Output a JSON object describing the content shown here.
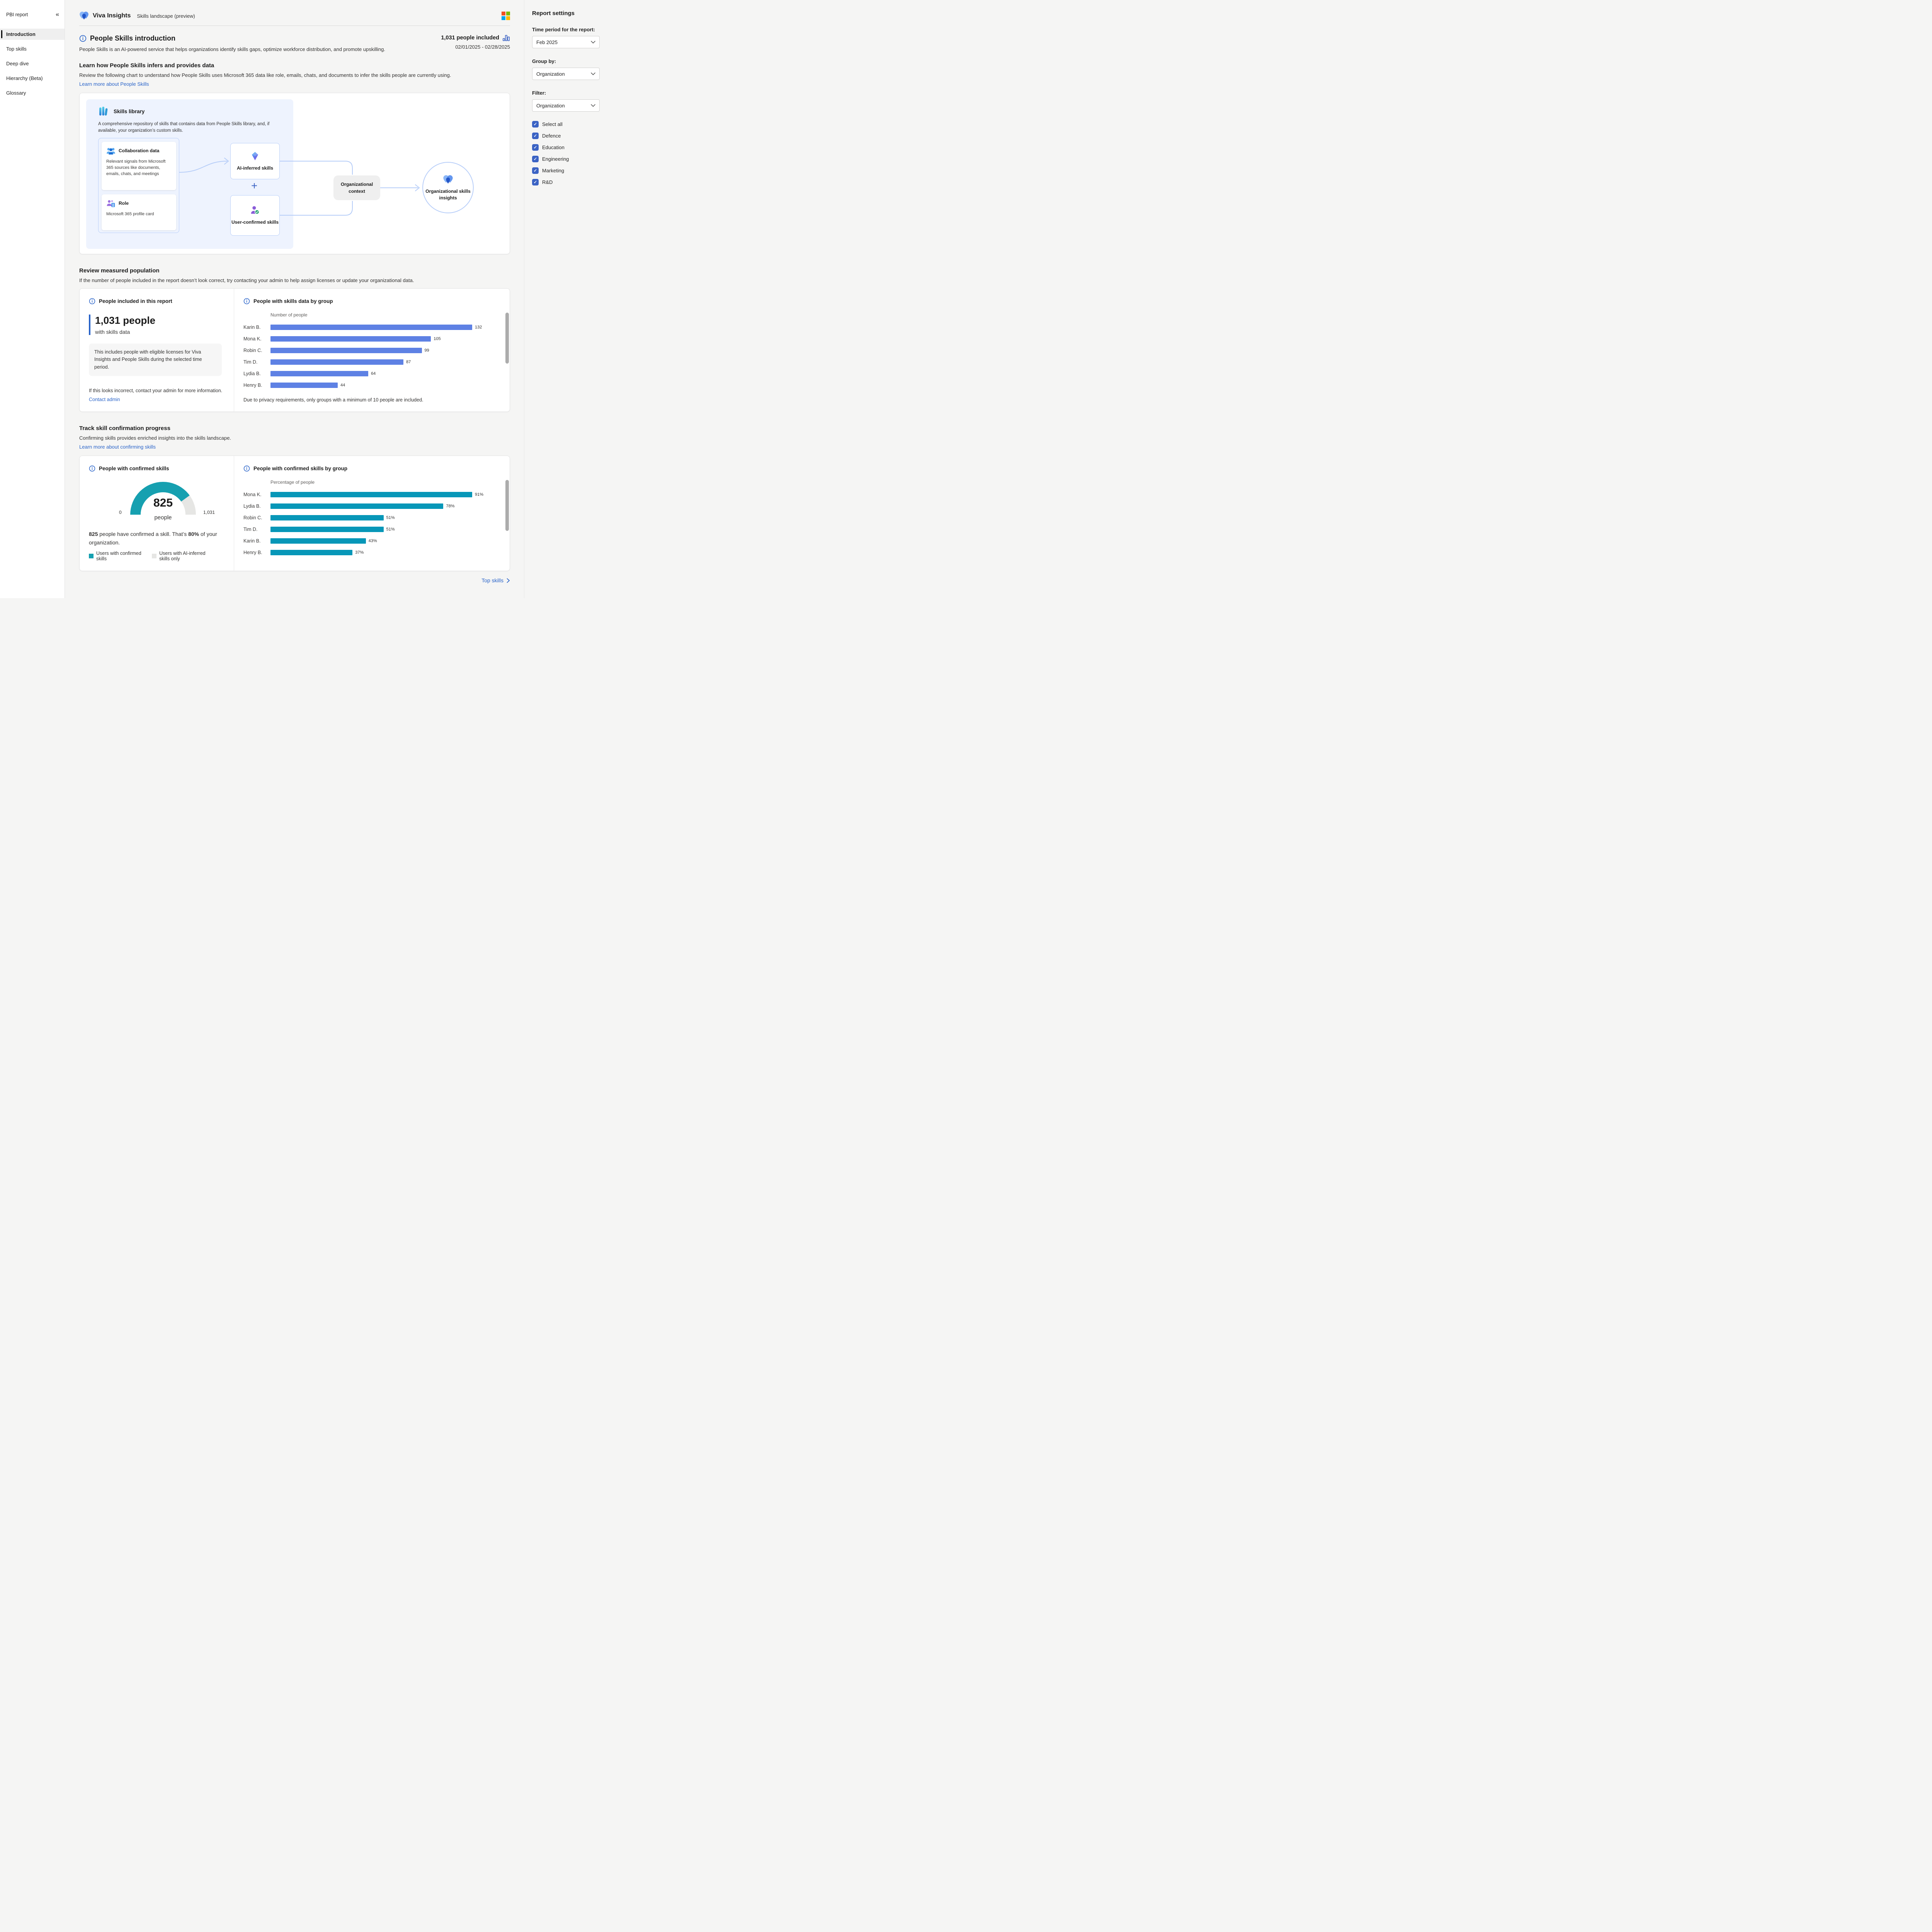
{
  "sidebar": {
    "title": "PBI report",
    "items": [
      {
        "label": "Introduction",
        "active": true
      },
      {
        "label": "Top skills",
        "active": false
      },
      {
        "label": "Deep dive",
        "active": false
      },
      {
        "label": "Hierarchy (Beta)",
        "active": false
      },
      {
        "label": "Glossary",
        "active": false
      }
    ]
  },
  "header": {
    "app_name": "Viva Insights",
    "report_name": "Skills landscape (preview)"
  },
  "intro": {
    "title": "People Skills introduction",
    "description": "People Skills is an AI-powered service that helps organizations identify skills gaps, optimize workforce distribution, and promote upskilling.",
    "people_included": "1,031 people included",
    "date_range": "02/01/2025 - 02/28/2025"
  },
  "learn": {
    "heading": "Learn how People Skills infers and provides data",
    "body": "Review the following chart to understand how People Skills uses Microsoft 365 data like role, emails, chats, and documents to infer the skills people are currently using.",
    "link": "Learn more about People Skills"
  },
  "diagram": {
    "skills_library": {
      "title": "Skills library",
      "description": "A comprehensive repository of skills that contains data from People Skills library, and, if available, your organization’s custom skills."
    },
    "collaboration": {
      "title": "Collaboration data",
      "body": "Relevant signals from Microsoft 365 sources like documents, emails, chats, and meetings"
    },
    "role": {
      "title": "Role",
      "body": "Microsoft 365 profile card"
    },
    "ai_card": "AI-inferred skills",
    "plus": "+",
    "user_card": "User-confirmed skills",
    "org_context": "Organizational context",
    "insights": "Organizational skills insights"
  },
  "review": {
    "heading": "Review measured population",
    "body": "If the number of people included in the report doesn’t look correct, try contacting your admin to help assign licenses or update your organizational data.",
    "left": {
      "title": "People included in this report",
      "big_number": "1,031 people",
      "big_sub": "with skills data",
      "note": "This includes people with eligible licenses for Viva Insights and People Skills during the selected time period.",
      "incorrect": "If this looks incorrect, contact your admin for more information.",
      "link": "Contact admin"
    },
    "right": {
      "note": "Due to privacy requirements, only groups with a minimum of 10 people are included."
    }
  },
  "track": {
    "heading": "Track skill confirmation progress",
    "body": "Confirming skills provides enriched insights into the skills landscape.",
    "link": "Learn more about confirming skills",
    "left": {
      "summary_bold_1": "825",
      "summary_text_1": " people have confirmed a skill. That’s ",
      "summary_bold_2": "80%",
      "summary_text_2": " of your organization.",
      "legend": [
        {
          "label": "Users with confirmed skills",
          "color": "#16a0b0"
        },
        {
          "label": "Users with AI-inferred skills only",
          "color": "#e6e6e4"
        }
      ]
    }
  },
  "footer": {
    "top_skills": "Top skills"
  },
  "settings": {
    "title": "Report settings",
    "time_label": "Time period for the report:",
    "time_value": "Feb 2025",
    "group_label": "Group by:",
    "group_value": "Organization",
    "filter_label": "Filter:",
    "filter_value": "Organization",
    "checkboxes": [
      {
        "label": "Select all",
        "checked": true
      },
      {
        "label": "Defence",
        "checked": true
      },
      {
        "label": "Education",
        "checked": true
      },
      {
        "label": "Engineering",
        "checked": true
      },
      {
        "label": "Marketing",
        "checked": true
      },
      {
        "label": "R&D",
        "checked": true
      }
    ]
  },
  "colors": {
    "bar_blue": "#5e81e4",
    "bar_teal": "#0797b8",
    "gauge_teal": "#16a0b0",
    "gauge_track": "#e6e6e4",
    "link_blue": "#2a64c9",
    "checkbox_blue": "#3b63c4"
  },
  "chart_data": [
    {
      "type": "bar",
      "orientation": "horizontal",
      "title": "People with skills data by group",
      "xlabel": "Number of people",
      "categories": [
        "Karin B.",
        "Mona K.",
        "Robin C.",
        "Tim D.",
        "Lydia B.",
        "Henry B."
      ],
      "values": [
        132,
        105,
        99,
        87,
        64,
        44
      ],
      "value_labels": [
        "132",
        "105",
        "99",
        "87",
        "64",
        "44"
      ],
      "bar_color": "#5e81e4",
      "grid": false,
      "legend": "none"
    },
    {
      "type": "bar",
      "orientation": "horizontal",
      "title": "People with confirmed skills by group",
      "xlabel": "Percentage of people",
      "categories": [
        "Mona K.",
        "Lydia B.",
        "Robin C.",
        "Tim D.",
        "Karin B.",
        "Henry B."
      ],
      "values": [
        91,
        78,
        51,
        51,
        43,
        37
      ],
      "value_labels": [
        "91%",
        "78%",
        "51%",
        "51%",
        "43%",
        "37%"
      ],
      "bar_color": "#0797b8",
      "grid": false,
      "legend": "none"
    },
    {
      "type": "gauge",
      "title": "People with confirmed skills",
      "value": 825,
      "min": 0,
      "max": 1031,
      "percent": 80,
      "value_label": "825",
      "unit_label": "people",
      "min_label": "0",
      "max_label": "1,031",
      "color": "#16a0b0",
      "track_color": "#e6e6e4"
    }
  ]
}
